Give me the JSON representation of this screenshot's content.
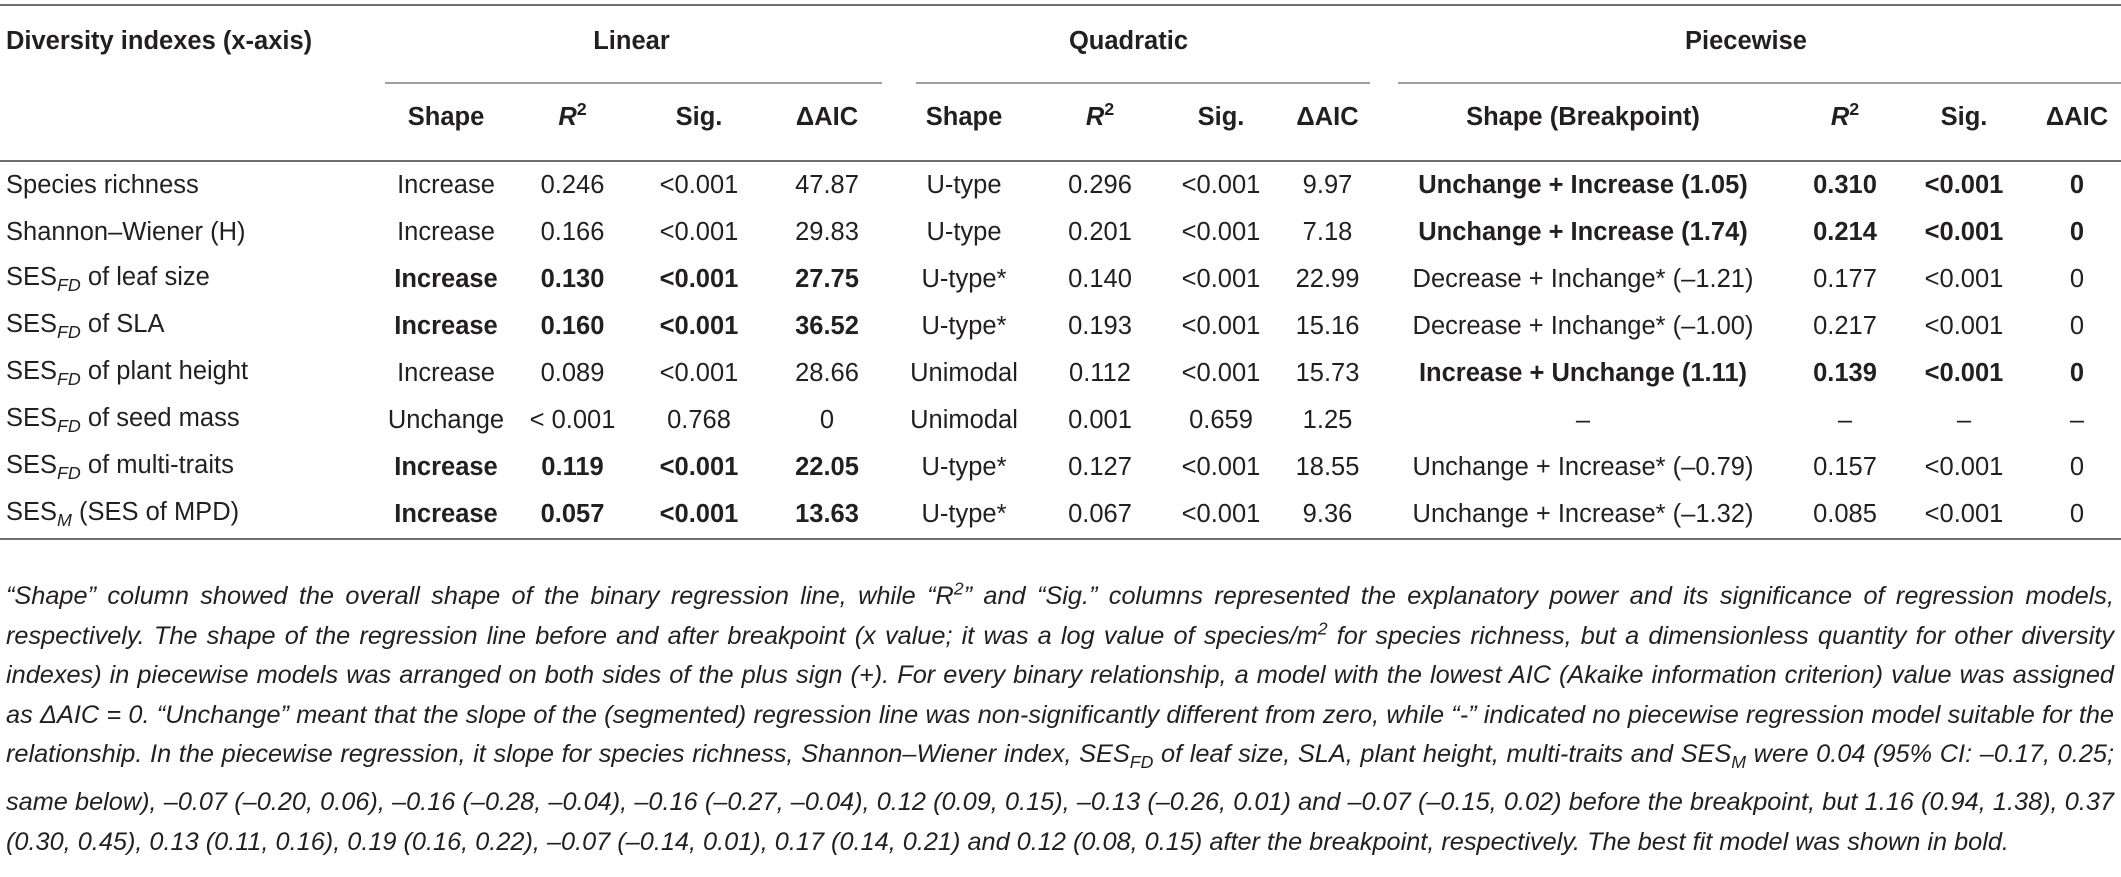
{
  "table": {
    "corner_header": "Diversity indexes (x-axis)",
    "groups": [
      "Linear",
      "Quadratic",
      "Piecewise"
    ],
    "subheaders": {
      "shape": "Shape",
      "r2_base": "R",
      "r2_sup": "2",
      "sig": "Sig.",
      "daic": "ΔAIC",
      "shape_breakpoint": "Shape (Breakpoint)"
    },
    "rows": [
      {
        "label_main": "Species richness",
        "label_sub": "",
        "label_rest": "",
        "lin": [
          "Increase",
          "0.246",
          "<0.001",
          "47.87"
        ],
        "quad": [
          "U-type",
          "0.296",
          "<0.001",
          "9.97"
        ],
        "pw": [
          "Unchange + Increase (1.05)",
          "0.310",
          "<0.001",
          "0"
        ],
        "bold": [
          "pw"
        ]
      },
      {
        "label_main": "Shannon–Wiener (H)",
        "label_sub": "",
        "label_rest": "",
        "lin": [
          "Increase",
          "0.166",
          "<0.001",
          "29.83"
        ],
        "quad": [
          "U-type",
          "0.201",
          "<0.001",
          "7.18"
        ],
        "pw": [
          "Unchange + Increase (1.74)",
          "0.214",
          "<0.001",
          "0"
        ],
        "bold": [
          "pw"
        ]
      },
      {
        "label_main": "SES",
        "label_sub": "FD",
        "label_rest": " of leaf size",
        "lin": [
          "Increase",
          "0.130",
          "<0.001",
          "27.75"
        ],
        "quad": [
          "U-type*",
          "0.140",
          "<0.001",
          "22.99"
        ],
        "pw": [
          "Decrease + Inchange* (–1.21)",
          "0.177",
          "<0.001",
          "0"
        ],
        "bold": [
          "lin"
        ]
      },
      {
        "label_main": "SES",
        "label_sub": "FD",
        "label_rest": " of SLA",
        "lin": [
          "Increase",
          "0.160",
          "<0.001",
          "36.52"
        ],
        "quad": [
          "U-type*",
          "0.193",
          "<0.001",
          "15.16"
        ],
        "pw": [
          "Decrease + Inchange* (–1.00)",
          "0.217",
          "<0.001",
          "0"
        ],
        "bold": [
          "lin"
        ]
      },
      {
        "label_main": "SES",
        "label_sub": "FD",
        "label_rest": " of plant height",
        "lin": [
          "Increase",
          "0.089",
          "<0.001",
          "28.66"
        ],
        "quad": [
          "Unimodal",
          "0.112",
          "<0.001",
          "15.73"
        ],
        "pw": [
          "Increase + Unchange (1.11)",
          "0.139",
          "<0.001",
          "0"
        ],
        "bold": [
          "pw"
        ]
      },
      {
        "label_main": "SES",
        "label_sub": "FD",
        "label_rest": " of seed mass",
        "lin": [
          "Unchange",
          "< 0.001",
          "0.768",
          "0"
        ],
        "quad": [
          "Unimodal",
          "0.001",
          "0.659",
          "1.25"
        ],
        "pw": [
          "–",
          "–",
          "–",
          "–"
        ],
        "bold": []
      },
      {
        "label_main": "SES",
        "label_sub": "FD",
        "label_rest": " of multi-traits",
        "lin": [
          "Increase",
          "0.119",
          "<0.001",
          "22.05"
        ],
        "quad": [
          "U-type*",
          "0.127",
          "<0.001",
          "18.55"
        ],
        "pw": [
          "Unchange + Increase* (–0.79)",
          "0.157",
          "<0.001",
          "0"
        ],
        "bold": [
          "lin"
        ]
      },
      {
        "label_main": "SES",
        "label_sub": "M",
        "label_rest": " (SES of MPD)",
        "lin": [
          "Increase",
          "0.057",
          "<0.001",
          "13.63"
        ],
        "quad": [
          "U-type*",
          "0.067",
          "<0.001",
          "9.36"
        ],
        "pw": [
          "Unchange + Increase* (–1.32)",
          "0.085",
          "<0.001",
          "0"
        ],
        "bold": [
          "lin"
        ]
      }
    ]
  },
  "footnote": {
    "p1": "“Shape” column showed the overall shape of the binary regression line, while “R",
    "p1_sup": "2",
    "p2": "” and “Sig.” columns represented the explanatory power and its significance of regression models, respectively. The shape of the regression line before and after breakpoint (x value; it was a log value of species/m",
    "p2_sup": "2",
    "p3": " for species richness, but a dimensionless quantity for other diversity indexes) in piecewise models was arranged on both sides of the plus sign (+). For every binary relationship, a model with the lowest AIC (Akaike information criterion) value was assigned as ΔAIC = 0. “Unchange” meant that the slope of the (segmented) regression line was non-significantly different from zero, while “-” indicated no piecewise regression model suitable for the relationship. In the piecewise regression, it slope for species richness, Shannon–Wiener index, SES",
    "p3_sub": "FD",
    "p4": " of leaf size, SLA, plant height, multi-traits and SES",
    "p4_sub": "M",
    "p5": " were 0.04 (95% CI: –0.17, 0.25; same below), –0.07 (–0.20, 0.06), –0.16 (–0.28, –0.04), –0.16 (–0.27, –0.04), 0.12 (0.09, 0.15), –0.13 (–0.26, 0.01) and –0.07 (–0.15, 0.02) before the breakpoint, but 1.16 (0.94, 1.38), 0.37 (0.30, 0.45), 0.13 (0.11, 0.16), 0.19 (0.16, 0.22), –0.07 (–0.14, 0.01), 0.17 (0.14, 0.21) and 0.12 (0.08, 0.15) after the breakpoint, respectively. The best fit model was shown in bold."
  }
}
